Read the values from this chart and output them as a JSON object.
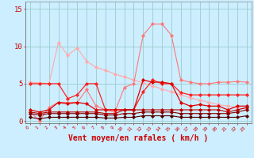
{
  "x": [
    0,
    1,
    2,
    3,
    4,
    5,
    6,
    7,
    8,
    9,
    10,
    11,
    12,
    13,
    14,
    15,
    16,
    17,
    18,
    19,
    20,
    21,
    22,
    23
  ],
  "background_color": "#cceeff",
  "grid_color": "#99cccc",
  "xlabel": "Vent moyen/en rafales ( km/h )",
  "xlabel_color": "#cc0000",
  "xlabel_fontsize": 7,
  "yticks": [
    0,
    5,
    10,
    15
  ],
  "ylim": [
    -0.3,
    16.0
  ],
  "xlim": [
    -0.5,
    23.5
  ],
  "series": [
    {
      "name": "diagonal_fade",
      "color": "#ffaaaa",
      "linewidth": 0.8,
      "marker": "D",
      "markersize": 2,
      "values": [
        5.2,
        5.1,
        5.0,
        10.5,
        8.8,
        9.8,
        8.0,
        7.2,
        6.8,
        6.3,
        5.9,
        5.5,
        5.1,
        4.7,
        4.3,
        3.9,
        3.5,
        3.1,
        2.8,
        2.5,
        2.2,
        2.0,
        1.8,
        1.6
      ]
    },
    {
      "name": "peaked_line",
      "color": "#ff7777",
      "linewidth": 0.8,
      "marker": "D",
      "markersize": 2,
      "values": [
        1.2,
        0.05,
        1.8,
        2.5,
        2.5,
        2.5,
        4.2,
        2.0,
        1.5,
        1.2,
        4.5,
        5.0,
        11.5,
        13.0,
        13.0,
        11.5,
        5.5,
        5.2,
        5.0,
        5.0,
        5.2,
        5.2,
        5.3,
        5.2
      ]
    },
    {
      "name": "mid_red",
      "color": "#ff2222",
      "linewidth": 0.9,
      "marker": "D",
      "markersize": 2,
      "values": [
        5.0,
        5.0,
        5.0,
        5.0,
        3.0,
        3.5,
        5.0,
        5.0,
        1.5,
        1.5,
        1.5,
        1.5,
        3.9,
        5.5,
        5.0,
        5.0,
        3.8,
        3.5,
        3.5,
        3.5,
        3.5,
        3.5,
        3.5,
        3.5
      ]
    },
    {
      "name": "bright_red",
      "color": "#dd0000",
      "linewidth": 0.9,
      "marker": "D",
      "markersize": 2,
      "values": [
        1.5,
        1.2,
        1.5,
        2.5,
        2.3,
        2.5,
        2.3,
        1.5,
        1.5,
        1.5,
        1.5,
        1.5,
        5.5,
        5.2,
        5.2,
        5.0,
        2.5,
        2.0,
        2.2,
        2.0,
        2.0,
        1.5,
        2.0,
        2.0
      ]
    },
    {
      "name": "dark_red1",
      "color": "#bb0000",
      "linewidth": 0.8,
      "marker": "D",
      "markersize": 2,
      "values": [
        1.2,
        1.0,
        1.2,
        1.2,
        1.2,
        1.2,
        1.2,
        1.2,
        1.0,
        1.0,
        1.5,
        1.5,
        1.5,
        1.5,
        1.5,
        1.5,
        1.5,
        1.5,
        1.5,
        1.5,
        1.5,
        1.2,
        1.5,
        1.8
      ]
    },
    {
      "name": "dark_red2",
      "color": "#880000",
      "linewidth": 0.8,
      "marker": "D",
      "markersize": 2,
      "values": [
        1.0,
        0.8,
        1.0,
        1.0,
        1.0,
        1.0,
        1.0,
        1.0,
        0.8,
        0.8,
        1.0,
        1.0,
        1.2,
        1.2,
        1.2,
        1.2,
        1.0,
        1.0,
        1.0,
        1.0,
        1.0,
        1.0,
        1.2,
        1.5
      ]
    },
    {
      "name": "darkest_red",
      "color": "#550000",
      "linewidth": 0.8,
      "marker": "D",
      "markersize": 2,
      "values": [
        0.5,
        0.3,
        0.5,
        0.5,
        0.5,
        0.5,
        0.5,
        0.5,
        0.4,
        0.4,
        0.5,
        0.5,
        0.7,
        0.7,
        0.7,
        0.7,
        0.5,
        0.5,
        0.5,
        0.5,
        0.5,
        0.5,
        0.5,
        0.7
      ]
    }
  ]
}
